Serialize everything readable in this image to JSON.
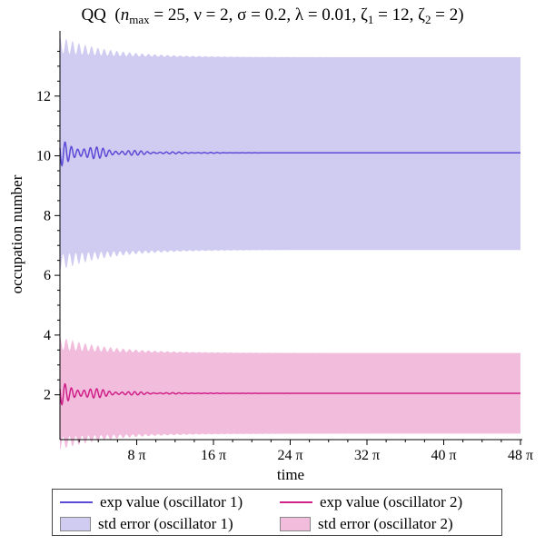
{
  "title": {
    "prefix": "QQ",
    "n_symbol": "n",
    "n_sub": "max",
    "n_value": "= 25,",
    "nu": "ν = 2,",
    "sigma": "σ = 0.2,",
    "lambda": "λ = 0.01,",
    "zeta1_symbol": "ζ",
    "zeta1_sub": "1",
    "zeta1_value": "= 12,",
    "zeta2_symbol": "ζ",
    "zeta2_sub": "2",
    "zeta2_value": "= 2)"
  },
  "chart_data": {
    "type": "line",
    "xlabel": "time",
    "ylabel": "occupation number",
    "xlim_pi": [
      0,
      48
    ],
    "ylim": [
      0.5,
      14
    ],
    "x_ticks": [
      {
        "value_pi": 8,
        "label": "8 π"
      },
      {
        "value_pi": 16,
        "label": "16 π"
      },
      {
        "value_pi": 24,
        "label": "24 π"
      },
      {
        "value_pi": 32,
        "label": "32 π"
      },
      {
        "value_pi": 40,
        "label": "40 π"
      },
      {
        "value_pi": 48,
        "label": "48 π"
      }
    ],
    "y_ticks": [
      {
        "value": 2,
        "label": "2"
      },
      {
        "value": 4,
        "label": "4"
      },
      {
        "value": 6,
        "label": "6"
      },
      {
        "value": 8,
        "label": "8"
      },
      {
        "value": 10,
        "label": "10"
      },
      {
        "value": 12,
        "label": "12"
      }
    ],
    "series": [
      {
        "name": "exp value (oscillator 1)",
        "kind": "line",
        "color": "#5b4bd6",
        "mean": 10.1,
        "initial_amplitude": 0.45,
        "decay_time_pi": 4.5,
        "oscillation_period_pi": 0.66
      },
      {
        "name": "std error (oscillator 1)",
        "kind": "band",
        "color": "#d0cbf1",
        "lower": 6.85,
        "upper": 13.3,
        "initial_ripple": 0.7,
        "decay_time_pi": 5
      },
      {
        "name": "exp value (oscillator 2)",
        "kind": "line",
        "color": "#d0208a",
        "mean": 2.05,
        "initial_amplitude": 0.4,
        "decay_time_pi": 4,
        "oscillation_period_pi": 0.66
      },
      {
        "name": "std error (oscillator 2)",
        "kind": "band",
        "color": "#f2bddc",
        "lower": 0.7,
        "upper": 3.4,
        "initial_ripple": 0.55,
        "decay_time_pi": 5
      }
    ],
    "legend": {
      "placement": "bottom",
      "entries": [
        {
          "label": "exp value (oscillator 1)",
          "kind": "line",
          "color": "#5b4bd6"
        },
        {
          "label": "exp value (oscillator 2)",
          "kind": "line",
          "color": "#d0208a"
        },
        {
          "label": "std error (oscillator 1)",
          "kind": "swatch",
          "color": "#d0cbf1"
        },
        {
          "label": "std error (oscillator 2)",
          "kind": "swatch",
          "color": "#f2bddc"
        }
      ]
    }
  }
}
